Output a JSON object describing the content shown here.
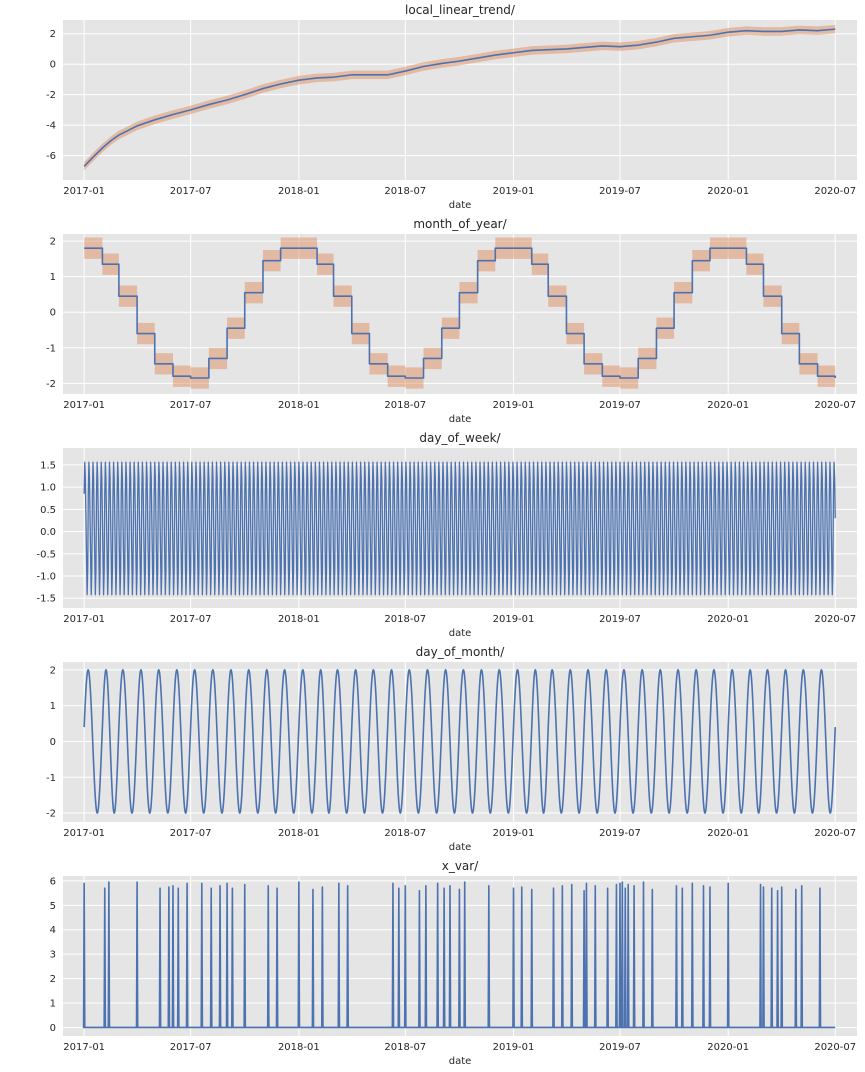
{
  "colors": {
    "background": "#ffffff",
    "plot_bg": "#e5e5e5",
    "grid": "#ffffff",
    "line": "#4c72b0",
    "band": "#dd8452",
    "text": "#262626"
  },
  "chart_data": [
    {
      "type": "line",
      "title": "local_linear_trend/",
      "xlabel": "date",
      "ylabel": "",
      "xlim": [
        "2016-11-26",
        "2020-08-07"
      ],
      "ylim": [
        -7.6,
        2.9
      ],
      "xticks": [
        "2017-01",
        "2017-07",
        "2018-01",
        "2018-07",
        "2019-01",
        "2019-07",
        "2020-01",
        "2020-07"
      ],
      "yticks": [
        -6,
        -4,
        -2,
        0,
        2
      ],
      "grid": true,
      "band_halfwidth": 0.28,
      "x": [
        "2017-01-01",
        "2017-01-16",
        "2017-02-01",
        "2017-02-16",
        "2017-03-01",
        "2017-04-01",
        "2017-05-01",
        "2017-06-01",
        "2017-07-01",
        "2017-08-01",
        "2017-09-01",
        "2017-10-01",
        "2017-11-01",
        "2017-12-01",
        "2018-01-01",
        "2018-02-01",
        "2018-03-01",
        "2018-04-01",
        "2018-05-01",
        "2018-06-01",
        "2018-07-01",
        "2018-08-01",
        "2018-09-01",
        "2018-10-01",
        "2018-11-01",
        "2018-12-01",
        "2019-01-01",
        "2019-02-01",
        "2019-03-01",
        "2019-04-01",
        "2019-05-01",
        "2019-06-01",
        "2019-07-01",
        "2019-08-01",
        "2019-09-01",
        "2019-10-01",
        "2019-11-01",
        "2019-12-01",
        "2020-01-01",
        "2020-02-01",
        "2020-03-01",
        "2020-04-01",
        "2020-05-01",
        "2020-06-01",
        "2020-07-01"
      ],
      "values": [
        -6.7,
        -6.1,
        -5.5,
        -5.0,
        -4.65,
        -4.05,
        -3.65,
        -3.3,
        -3.0,
        -2.65,
        -2.35,
        -2.0,
        -1.6,
        -1.3,
        -1.05,
        -0.9,
        -0.85,
        -0.7,
        -0.7,
        -0.7,
        -0.45,
        -0.15,
        0.05,
        0.2,
        0.4,
        0.6,
        0.75,
        0.9,
        0.95,
        1.0,
        1.1,
        1.2,
        1.15,
        1.25,
        1.45,
        1.7,
        1.8,
        1.9,
        2.1,
        2.2,
        2.15,
        2.15,
        2.25,
        2.2,
        2.3
      ]
    },
    {
      "type": "line",
      "title": "month_of_year/",
      "xlabel": "date",
      "ylabel": "",
      "xlim": [
        "2016-11-26",
        "2020-08-07"
      ],
      "ylim": [
        -2.3,
        2.2
      ],
      "xticks": [
        "2017-01",
        "2017-07",
        "2018-01",
        "2018-07",
        "2019-01",
        "2019-07",
        "2020-01",
        "2020-07"
      ],
      "yticks": [
        -2,
        -1,
        0,
        1,
        2
      ],
      "grid": true,
      "band_halfwidth": 0.3,
      "step": true,
      "months": [
        "Jan",
        "Feb",
        "Mar",
        "Apr",
        "May",
        "Jun",
        "Jul",
        "Aug",
        "Sep",
        "Oct",
        "Nov",
        "Dec"
      ],
      "monthly_values": [
        1.8,
        1.35,
        0.45,
        -0.6,
        -1.45,
        -1.8,
        -1.85,
        -1.3,
        -0.45,
        0.55,
        1.45,
        1.8
      ],
      "x_start": "2017-01-01",
      "x_end": "2020-07-01"
    },
    {
      "type": "line",
      "title": "day_of_week/",
      "xlabel": "date",
      "ylabel": "",
      "xlim": [
        "2016-11-26",
        "2020-08-07"
      ],
      "ylim": [
        -1.72,
        1.88
      ],
      "xticks": [
        "2017-01",
        "2017-07",
        "2018-01",
        "2018-07",
        "2019-01",
        "2019-07",
        "2020-01",
        "2020-07"
      ],
      "yticks": [
        -1.5,
        -1.0,
        -0.5,
        0.0,
        0.5,
        1.0,
        1.5
      ],
      "grid": true,
      "band_halfwidth": 0.12,
      "weekly_values": [
        0.85,
        1.56,
        1.2,
        0.3,
        -0.6,
        -1.42,
        -0.9
      ],
      "x_start": "2017-01-01",
      "x_end": "2020-07-01"
    },
    {
      "type": "line",
      "title": "day_of_month/",
      "xlabel": "date",
      "ylabel": "",
      "xlim": [
        "2016-11-26",
        "2020-08-07"
      ],
      "ylim": [
        -2.25,
        2.22
      ],
      "xticks": [
        "2017-01",
        "2017-07",
        "2018-01",
        "2018-07",
        "2019-01",
        "2019-07",
        "2020-01",
        "2020-07"
      ],
      "yticks": [
        -2,
        -1,
        0,
        1,
        2
      ],
      "grid": true,
      "amplitude": 2.0,
      "start_value": 0.4,
      "cycles_per_month": 1,
      "x_start": "2017-01-01",
      "x_end": "2020-07-01"
    },
    {
      "type": "line",
      "title": "x_var/",
      "xlabel": "date",
      "ylabel": "",
      "xlim": [
        "2016-11-26",
        "2020-08-07"
      ],
      "ylim": [
        -0.35,
        6.2
      ],
      "xticks": [
        "2017-01",
        "2017-07",
        "2018-01",
        "2018-07",
        "2019-01",
        "2019-07",
        "2020-01",
        "2020-07"
      ],
      "yticks": [
        0,
        1,
        2,
        3,
        4,
        5,
        6
      ],
      "grid": true,
      "baseline": 0,
      "x_end": "2020-07-01",
      "spikes": [
        [
          "2017-01-01",
          5.9
        ],
        [
          "2017-02-05",
          5.7
        ],
        [
          "2017-02-12",
          5.95
        ],
        [
          "2017-04-01",
          5.95
        ],
        [
          "2017-05-10",
          5.7
        ],
        [
          "2017-05-25",
          5.75
        ],
        [
          "2017-06-01",
          5.8
        ],
        [
          "2017-06-10",
          5.7
        ],
        [
          "2017-06-25",
          5.9
        ],
        [
          "2017-07-20",
          5.9
        ],
        [
          "2017-08-05",
          5.7
        ],
        [
          "2017-08-20",
          5.8
        ],
        [
          "2017-09-01",
          5.9
        ],
        [
          "2017-09-10",
          5.7
        ],
        [
          "2017-10-01",
          5.85
        ],
        [
          "2017-11-10",
          5.8
        ],
        [
          "2017-11-25",
          5.7
        ],
        [
          "2018-01-01",
          5.95
        ],
        [
          "2018-01-25",
          5.65
        ],
        [
          "2018-02-10",
          5.75
        ],
        [
          "2018-03-10",
          5.9
        ],
        [
          "2018-03-25",
          5.8
        ],
        [
          "2018-06-10",
          5.9
        ],
        [
          "2018-06-20",
          5.7
        ],
        [
          "2018-07-01",
          5.8
        ],
        [
          "2018-07-25",
          5.6
        ],
        [
          "2018-08-05",
          5.8
        ],
        [
          "2018-08-25",
          5.9
        ],
        [
          "2018-09-05",
          5.7
        ],
        [
          "2018-09-15",
          5.8
        ],
        [
          "2018-10-01",
          5.65
        ],
        [
          "2018-10-10",
          5.95
        ],
        [
          "2018-11-20",
          5.8
        ],
        [
          "2019-01-01",
          5.7
        ],
        [
          "2019-01-15",
          5.75
        ],
        [
          "2019-02-01",
          5.65
        ],
        [
          "2019-03-10",
          5.7
        ],
        [
          "2019-03-25",
          5.8
        ],
        [
          "2019-04-10",
          5.85
        ],
        [
          "2019-05-01",
          5.6
        ],
        [
          "2019-05-05",
          5.9
        ],
        [
          "2019-05-20",
          5.8
        ],
        [
          "2019-06-10",
          5.7
        ],
        [
          "2019-06-25",
          5.85
        ],
        [
          "2019-07-01",
          5.9
        ],
        [
          "2019-07-05",
          5.95
        ],
        [
          "2019-07-10",
          5.7
        ],
        [
          "2019-07-15",
          5.85
        ],
        [
          "2019-07-25",
          5.8
        ],
        [
          "2019-08-10",
          5.95
        ],
        [
          "2019-08-25",
          5.65
        ],
        [
          "2019-10-05",
          5.8
        ],
        [
          "2019-10-15",
          5.7
        ],
        [
          "2019-11-01",
          5.9
        ],
        [
          "2019-11-20",
          5.8
        ],
        [
          "2019-12-01",
          5.75
        ],
        [
          "2020-01-01",
          5.9
        ],
        [
          "2020-02-25",
          5.85
        ],
        [
          "2020-03-01",
          5.75
        ],
        [
          "2020-03-15",
          5.7
        ],
        [
          "2020-03-25",
          5.6
        ],
        [
          "2020-04-01",
          5.75
        ],
        [
          "2020-04-25",
          5.65
        ],
        [
          "2020-05-05",
          5.8
        ],
        [
          "2020-06-05",
          5.7
        ]
      ]
    }
  ]
}
